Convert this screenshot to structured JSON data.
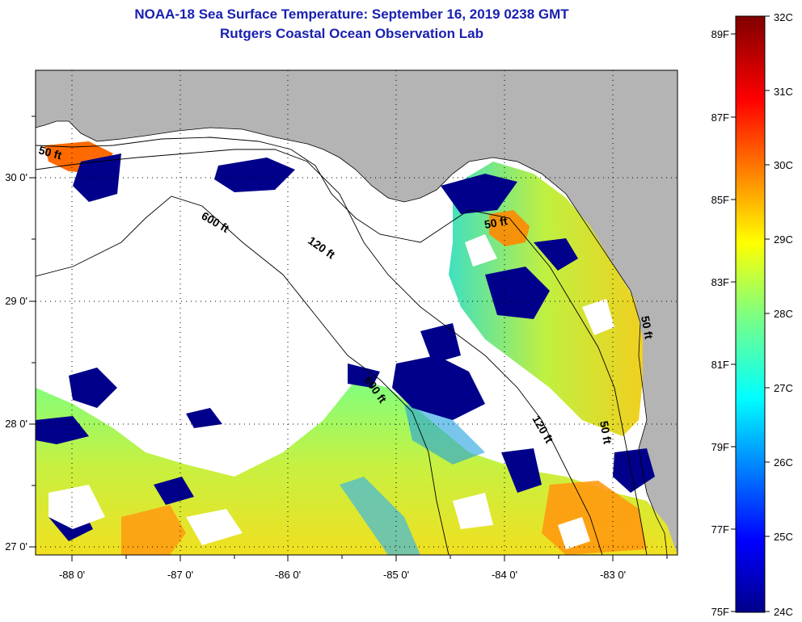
{
  "title": {
    "line1": "NOAA-18 Sea Surface Temperature:  September 16, 2019 0238 GMT",
    "line2": "Rutgers Coastal Ocean Observation Lab"
  },
  "map": {
    "lon_labels": [
      "-88 0'",
      "-87 0'",
      "-86 0'",
      "-85 0'",
      "-84 0'",
      "-83 0'"
    ],
    "lat_labels": [
      "30 0'",
      "29 0'",
      "28 0'",
      "27 0'"
    ],
    "contour_labels": [
      "600 ft",
      "120 ft",
      "50 ft",
      "600 ft",
      "120 ft",
      "50 ft",
      "50 ft",
      "50 ft"
    ],
    "colors": {
      "land": "#b4b4b4",
      "cloud": "#ffffff",
      "cold": "#00008a",
      "warm": "#ff7a00"
    }
  },
  "colorbar": {
    "fahrenheit": [
      "89F",
      "87F",
      "85F",
      "83F",
      "81F",
      "79F",
      "77F",
      "75F"
    ],
    "celsius": [
      "32C",
      "31C",
      "30C",
      "29C",
      "28C",
      "27C",
      "26C",
      "25C",
      "24C"
    ],
    "range_c": [
      24,
      32
    ],
    "range_f": [
      75,
      89.6
    ]
  }
}
